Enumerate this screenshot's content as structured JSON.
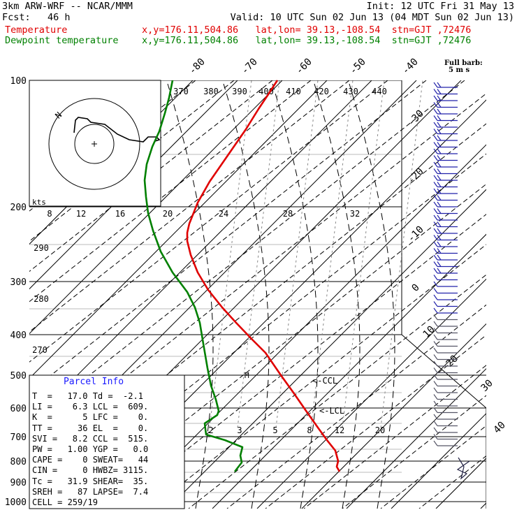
{
  "header": {
    "line1_left": "3km ARW-WRF -- NCAR/MMM",
    "line1_right": "Init: 12 UTC Fri 31 May 13",
    "line2_left": "Fcst:   46 h",
    "line2_right": "Valid: 10 UTC Sun 02 Jun 13 (04 MDT Sun 02 Jun 13)",
    "temp_label": "Temperature",
    "temp_info": "x,y=176.11,504.86   lat,lon= 39.13,-108.54  stn=GJT ,72476",
    "dew_label": "Dewpoint temperature",
    "dew_info": "x,y=176.11,504.86   lat,lon= 39.13,-108.54  stn=GJT ,72476"
  },
  "colors": {
    "temperature": "#e00000",
    "dewpoint": "#008000",
    "grid": "#000000"
  },
  "chart_data": {
    "type": "line",
    "pressure_ticks": [
      "100",
      "200",
      "300",
      "400",
      "500",
      "600",
      "700",
      "800",
      "900",
      "1000"
    ],
    "temp_ticks": [
      {
        "label": "-80"
      },
      {
        "label": "-70"
      },
      {
        "label": "-60"
      },
      {
        "label": "-50"
      },
      {
        "label": "-40"
      },
      {
        "label": "-30"
      },
      {
        "label": "-20"
      },
      {
        "label": "-10"
      },
      {
        "label": "0"
      },
      {
        "label": "10"
      },
      {
        "label": "20"
      },
      {
        "label": "30"
      },
      {
        "label": "40"
      }
    ],
    "theta_labels": [
      "370",
      "380",
      "390",
      "400",
      "410",
      "420",
      "430",
      "440",
      "290",
      "280",
      "270"
    ],
    "mixing_ratio_labels": [
      "2",
      "3",
      "5",
      "8",
      "12",
      "20"
    ],
    "hodograph": {
      "units": "kts",
      "speed_labels": [
        "8",
        "12",
        "16",
        "20",
        "24",
        "28",
        "32"
      ],
      "north_label": "N"
    },
    "annotations": {
      "ccl": "<-CCL",
      "lcl": "<-LCL",
      "m": "M"
    },
    "barb_legend": [
      "Full barb:",
      "5 m s"
    ],
    "temperature_profile": {
      "name": "Temperature",
      "points": [
        [
          397,
          115
        ],
        [
          384,
          135
        ],
        [
          370,
          156
        ],
        [
          352,
          185
        ],
        [
          336,
          208
        ],
        [
          318,
          234
        ],
        [
          300,
          260
        ],
        [
          283,
          290
        ],
        [
          271,
          320
        ],
        [
          268,
          333
        ],
        [
          268,
          345
        ],
        [
          273,
          365
        ],
        [
          283,
          390
        ],
        [
          298,
          415
        ],
        [
          318,
          440
        ],
        [
          338,
          462
        ],
        [
          360,
          485
        ],
        [
          380,
          505
        ],
        [
          402,
          537
        ],
        [
          420,
          562
        ],
        [
          438,
          588
        ],
        [
          455,
          612
        ],
        [
          468,
          630
        ],
        [
          480,
          645
        ],
        [
          484,
          660
        ],
        [
          482,
          668
        ],
        [
          486,
          675
        ]
      ]
    },
    "dewpoint_profile": {
      "name": "Dewpoint temperature",
      "points": [
        [
          247,
          115
        ],
        [
          242,
          140
        ],
        [
          236,
          162
        ],
        [
          228,
          188
        ],
        [
          218,
          210
        ],
        [
          210,
          235
        ],
        [
          207,
          258
        ],
        [
          209,
          282
        ],
        [
          212,
          305
        ],
        [
          219,
          330
        ],
        [
          230,
          360
        ],
        [
          247,
          390
        ],
        [
          268,
          418
        ],
        [
          279,
          440
        ],
        [
          286,
          462
        ],
        [
          291,
          492
        ],
        [
          297,
          527
        ],
        [
          302,
          552
        ],
        [
          309,
          572
        ],
        [
          313,
          588
        ],
        [
          311,
          594
        ],
        [
          302,
          600
        ],
        [
          293,
          606
        ],
        [
          295,
          622
        ],
        [
          322,
          630
        ],
        [
          347,
          640
        ],
        [
          344,
          652
        ],
        [
          346,
          662
        ],
        [
          336,
          675
        ]
      ]
    }
  },
  "parcel_info": {
    "title": "Parcel Info",
    "rows": [
      "T  =   17.0 Td =  -2.1",
      "LI =    6.3 LCL =  609.",
      "K  =      5 LFC =    0.",
      "TT =     36 EL  =    0.",
      "SVI =   8.2 CCL =  515.",
      "PW =   1.00 YGP =   0.0",
      "CAPE =    0 SWEAT=   44",
      "CIN =     0 HWBZ= 3115.",
      "Tc =   31.9 SHEAR=  35.",
      "SREH =   87 LAPSE=  7.4",
      "CELL = 259/19"
    ]
  }
}
